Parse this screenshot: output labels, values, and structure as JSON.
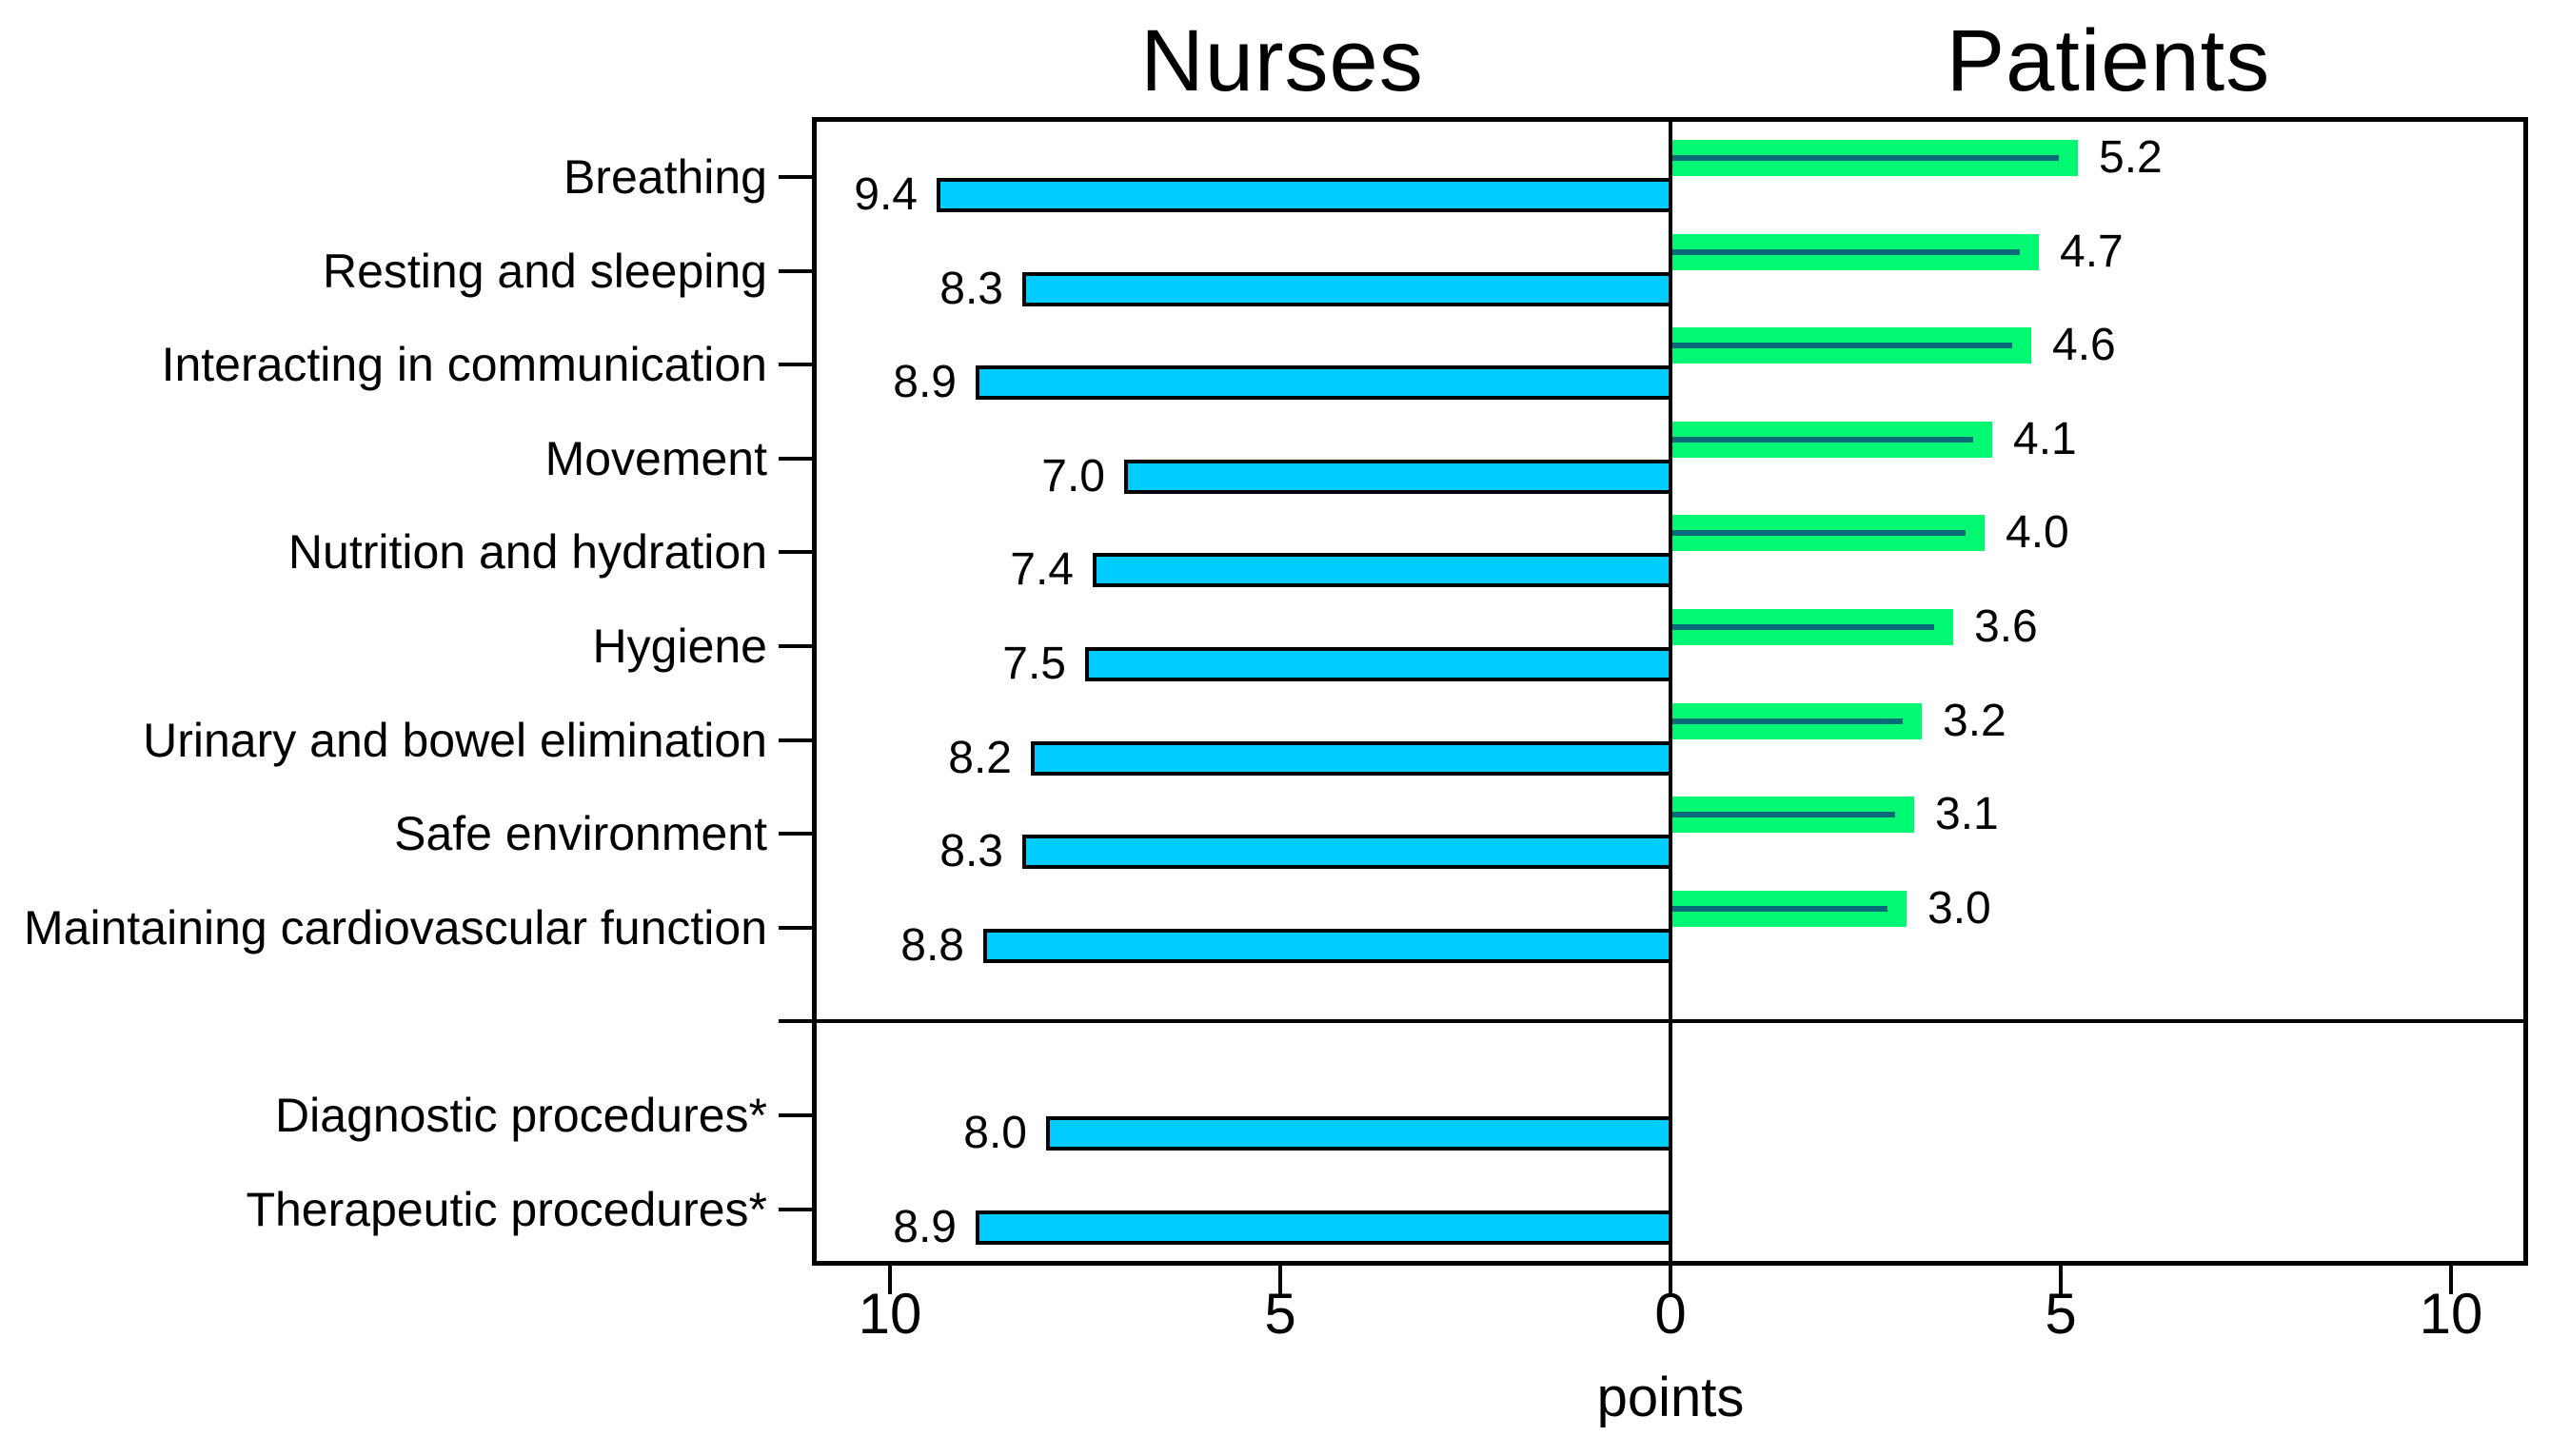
{
  "chart_data": {
    "type": "bar",
    "variant": "diverging-grouped-horizontal",
    "panel_titles": [
      "Nurses",
      "Patients"
    ],
    "xlabel": "points",
    "axis": {
      "left_tick_values": [
        10,
        5,
        0
      ],
      "right_tick_values": [
        5,
        10
      ],
      "max_each_side": 11,
      "center_value": 0,
      "grid": false
    },
    "series": [
      {
        "name": "Nurses",
        "side": "left",
        "color": "#00CCFF"
      },
      {
        "name": "Patients",
        "side": "right",
        "color": "#00F873"
      }
    ],
    "sections": [
      {
        "rows": [
          {
            "label": "Breathing",
            "nurses": 9.4,
            "patients": 5.2
          },
          {
            "label": "Resting and sleeping",
            "nurses": 8.3,
            "patients": 4.7
          },
          {
            "label": "Interacting in communication",
            "nurses": 8.9,
            "patients": 4.6
          },
          {
            "label": "Movement",
            "nurses": 7.0,
            "patients": 4.1
          },
          {
            "label": "Nutrition and hydration",
            "nurses": 7.4,
            "patients": 4.0
          },
          {
            "label": "Hygiene",
            "nurses": 7.5,
            "patients": 3.6
          },
          {
            "label": "Urinary and bowel elimination",
            "nurses": 8.2,
            "patients": 3.2
          },
          {
            "label": "Safe environment",
            "nurses": 8.3,
            "patients": 3.1
          },
          {
            "label": "Maintaining cardiovascular function",
            "nurses": 8.8,
            "patients": 3.0
          }
        ]
      },
      {
        "rows": [
          {
            "label": "Diagnostic procedures*",
            "nurses": 8.0,
            "patients": null
          },
          {
            "label": "Therapeutic procedures*",
            "nurses": 8.9,
            "patients": null
          }
        ]
      }
    ],
    "colors": {
      "nurses_bar": "#00CCFF",
      "patients_bar": "#00F873",
      "patients_inner_line": "#0A6B78",
      "outline": "#000000",
      "axis": "#000000",
      "background": "#FFFFFF"
    }
  }
}
